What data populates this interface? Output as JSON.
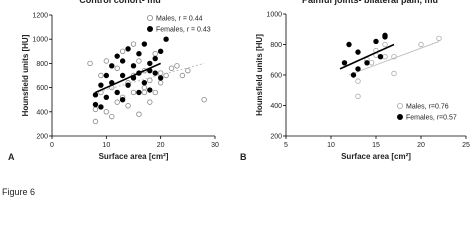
{
  "figure_label": "Figure 6",
  "chart_data": [
    {
      "type": "scatter",
      "title": "Control cohort- mu",
      "panel_label": "A",
      "xlabel": "Surface area [cm²]",
      "ylabel": "Hounsfield units [HU]",
      "xlim": [
        0,
        30
      ],
      "ylim": [
        200,
        1200
      ],
      "xticks": [
        0,
        10,
        20,
        30
      ],
      "yticks": [
        200,
        400,
        600,
        800,
        1000,
        1200
      ],
      "series": [
        {
          "name": "Males, r = 0.44",
          "color": "#888888",
          "filled": false,
          "x": [
            8,
            9,
            9,
            10,
            10,
            11,
            12,
            12,
            13,
            13,
            14,
            14,
            15,
            15,
            16,
            16,
            17,
            17,
            18,
            18,
            19,
            19,
            20,
            20,
            21,
            22,
            23,
            24,
            25,
            28,
            7,
            8,
            11,
            15,
            17
          ],
          "values": [
            320,
            560,
            700,
            400,
            820,
            600,
            480,
            760,
            520,
            900,
            640,
            450,
            700,
            560,
            820,
            380,
            600,
            740,
            660,
            480,
            880,
            560,
            720,
            640,
            700,
            760,
            780,
            700,
            740,
            500,
            800,
            420,
            360,
            960,
            560
          ],
          "fit": {
            "x": [
              8,
              28
            ],
            "y": [
              560,
              800
            ]
          },
          "fit_dash": true
        },
        {
          "name": "Females, r = 0.43",
          "color": "#000000",
          "filled": true,
          "x": [
            8,
            8,
            9,
            10,
            10,
            11,
            11,
            12,
            12,
            13,
            13,
            14,
            14,
            15,
            15,
            16,
            16,
            17,
            17,
            18,
            18,
            19,
            19,
            20,
            20,
            21,
            9,
            13,
            16,
            18
          ],
          "values": [
            540,
            460,
            620,
            700,
            520,
            640,
            780,
            560,
            860,
            700,
            500,
            920,
            620,
            780,
            680,
            880,
            720,
            640,
            960,
            800,
            580,
            840,
            720,
            900,
            680,
            1000,
            440,
            820,
            560,
            740
          ],
          "fit": {
            "x": [
              8,
              20
            ],
            "y": [
              560,
              800
            ]
          },
          "fit_dash": false
        }
      ]
    },
    {
      "type": "scatter",
      "title": "Painful joints- bilateral pain, mu",
      "panel_label": "B",
      "xlabel": "Surface area [cm²]",
      "ylabel": "Hounsfield units [HU]",
      "xlim": [
        5,
        25
      ],
      "ylim": [
        200,
        1000
      ],
      "xticks": [
        5,
        10,
        15,
        20,
        25
      ],
      "yticks": [
        200,
        400,
        600,
        800,
        1000
      ],
      "series": [
        {
          "name": "Males, r=0.76",
          "color": "#aaaaaa",
          "filled": false,
          "x": [
            13,
            13,
            14,
            15,
            15,
            16,
            16,
            17,
            17,
            20,
            22,
            14.5
          ],
          "values": [
            460,
            560,
            700,
            760,
            730,
            800,
            720,
            720,
            610,
            800,
            840,
            680
          ],
          "fit": {
            "x": [
              12,
              22
            ],
            "y": [
              600,
              820
            ]
          },
          "fit_dash": false
        },
        {
          "name": "Females, r=0.57",
          "color": "#000000",
          "filled": true,
          "x": [
            11.5,
            12,
            12.5,
            13,
            13,
            14,
            15,
            16,
            16,
            15.5
          ],
          "values": [
            680,
            800,
            600,
            750,
            640,
            680,
            820,
            860,
            850,
            720
          ],
          "fit": {
            "x": [
              11,
              17
            ],
            "y": [
              640,
              800
            ]
          },
          "fit_dash": false
        }
      ]
    }
  ]
}
